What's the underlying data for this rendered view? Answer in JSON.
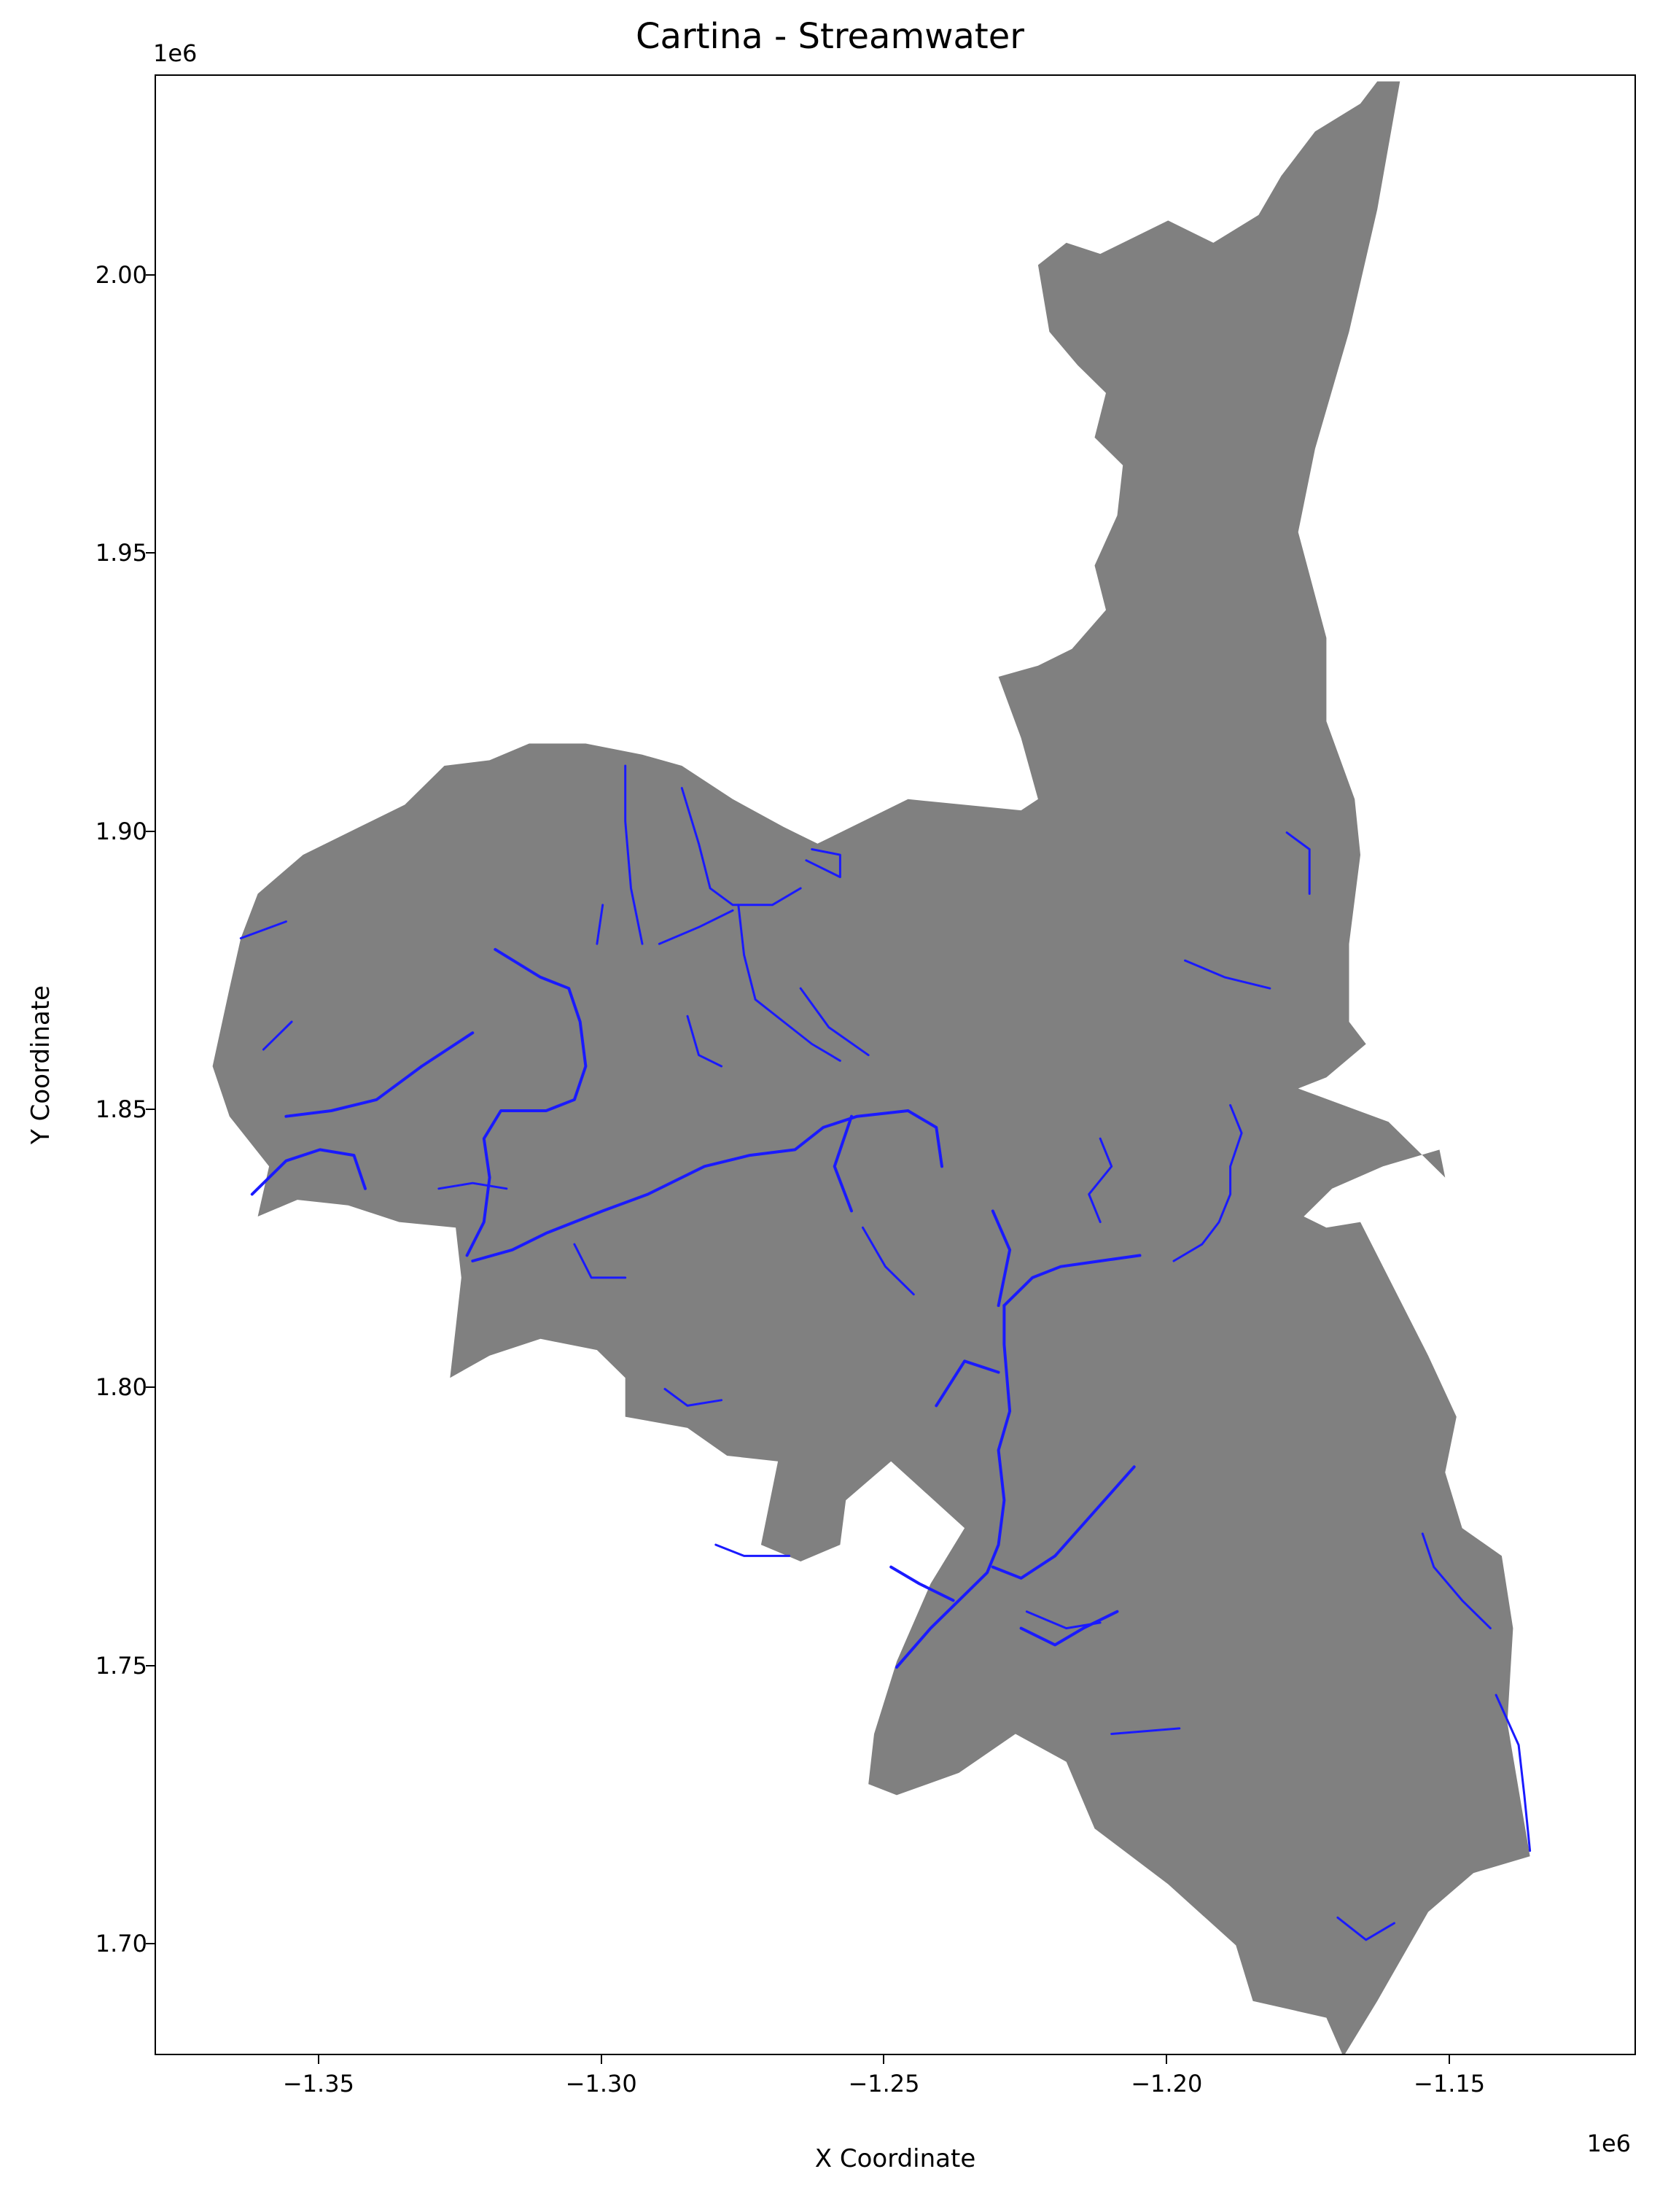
{
  "title": "Cartina - Streamwater",
  "axes": {
    "xlabel": "X Coordinate",
    "ylabel": "Y Coordinate",
    "x_offset": "1e6",
    "y_offset": "1e6",
    "xticks": [
      "−1.35",
      "−1.30",
      "−1.25",
      "−1.20",
      "−1.15"
    ],
    "xtick_values": [
      -1.35,
      -1.3,
      -1.25,
      -1.2,
      -1.15
    ],
    "yticks": [
      "2.00",
      "1.95",
      "1.90",
      "1.85",
      "1.80",
      "1.75",
      "1.70"
    ],
    "ytick_values": [
      2.0,
      1.95,
      1.9,
      1.85,
      1.8,
      1.75,
      1.7
    ],
    "xlim": [
      -1.379,
      -1.117
    ],
    "ylim": [
      1.68,
      2.036
    ]
  },
  "colors": {
    "land": "#808080",
    "streams": "#1a1aff",
    "background": "#ffffff"
  },
  "chart_data": {
    "type": "map",
    "title": "Cartina - Streamwater",
    "xlabel": "X Coordinate",
    "ylabel": "Y Coordinate",
    "units_multiplier": "1e6",
    "region_outline": [
      [
        -1.159,
        2.035
      ],
      [
        -1.163,
        2.035
      ],
      [
        -1.166,
        2.031
      ],
      [
        -1.174,
        2.026
      ],
      [
        -1.18,
        2.018
      ],
      [
        -1.184,
        2.011
      ],
      [
        -1.192,
        2.006
      ],
      [
        -1.2,
        2.01
      ],
      [
        -1.212,
        2.004
      ],
      [
        -1.218,
        2.006
      ],
      [
        -1.223,
        2.002
      ],
      [
        -1.221,
        1.99
      ],
      [
        -1.216,
        1.984
      ],
      [
        -1.211,
        1.979
      ],
      [
        -1.213,
        1.971
      ],
      [
        -1.208,
        1.966
      ],
      [
        -1.209,
        1.957
      ],
      [
        -1.213,
        1.948
      ],
      [
        -1.211,
        1.94
      ],
      [
        -1.217,
        1.933
      ],
      [
        -1.223,
        1.93
      ],
      [
        -1.23,
        1.928
      ],
      [
        -1.226,
        1.917
      ],
      [
        -1.223,
        1.906
      ],
      [
        -1.226,
        1.904
      ],
      [
        -1.246,
        1.906
      ],
      [
        -1.262,
        1.898
      ],
      [
        -1.268,
        1.901
      ],
      [
        -1.277,
        1.906
      ],
      [
        -1.286,
        1.912
      ],
      [
        -1.293,
        1.914
      ],
      [
        -1.303,
        1.916
      ],
      [
        -1.313,
        1.916
      ],
      [
        -1.32,
        1.913
      ],
      [
        -1.328,
        1.912
      ],
      [
        -1.335,
        1.905
      ],
      [
        -1.343,
        1.901
      ],
      [
        -1.353,
        1.896
      ],
      [
        -1.361,
        1.889
      ],
      [
        -1.364,
        1.881
      ],
      [
        -1.366,
        1.872
      ],
      [
        -1.369,
        1.858
      ],
      [
        -1.366,
        1.849
      ],
      [
        -1.359,
        1.84
      ],
      [
        -1.361,
        1.831
      ],
      [
        -1.354,
        1.834
      ],
      [
        -1.345,
        1.833
      ],
      [
        -1.336,
        1.83
      ],
      [
        -1.326,
        1.829
      ],
      [
        -1.325,
        1.82
      ],
      [
        -1.326,
        1.811
      ],
      [
        -1.327,
        1.802
      ],
      [
        -1.32,
        1.806
      ],
      [
        -1.311,
        1.809
      ],
      [
        -1.301,
        1.807
      ],
      [
        -1.296,
        1.802
      ],
      [
        -1.296,
        1.795
      ],
      [
        -1.285,
        1.793
      ],
      [
        -1.278,
        1.788
      ],
      [
        -1.269,
        1.787
      ],
      [
        -1.272,
        1.772
      ],
      [
        -1.265,
        1.769
      ],
      [
        -1.258,
        1.772
      ],
      [
        -1.257,
        1.78
      ],
      [
        -1.249,
        1.787
      ],
      [
        -1.236,
        1.775
      ],
      [
        -1.242,
        1.765
      ],
      [
        -1.248,
        1.751
      ],
      [
        -1.252,
        1.738
      ],
      [
        -1.253,
        1.729
      ],
      [
        -1.248,
        1.727
      ],
      [
        -1.237,
        1.731
      ],
      [
        -1.227,
        1.738
      ],
      [
        -1.218,
        1.733
      ],
      [
        -1.213,
        1.721
      ],
      [
        -1.2,
        1.711
      ],
      [
        -1.188,
        1.7
      ],
      [
        -1.185,
        1.69
      ],
      [
        -1.172,
        1.687
      ],
      [
        -1.169,
        1.68
      ],
      [
        -1.163,
        1.69
      ],
      [
        -1.154,
        1.706
      ],
      [
        -1.146,
        1.713
      ],
      [
        -1.136,
        1.716
      ],
      [
        -1.14,
        1.74
      ],
      [
        -1.139,
        1.757
      ],
      [
        -1.141,
        1.77
      ],
      [
        -1.148,
        1.775
      ],
      [
        -1.151,
        1.785
      ],
      [
        -1.149,
        1.795
      ],
      [
        -1.154,
        1.806
      ],
      [
        -1.161,
        1.82
      ],
      [
        -1.166,
        1.83
      ],
      [
        -1.172,
        1.829
      ],
      [
        -1.176,
        1.831
      ],
      [
        -1.171,
        1.836
      ],
      [
        -1.162,
        1.84
      ],
      [
        -1.152,
        1.843
      ],
      [
        -1.151,
        1.838
      ],
      [
        -1.161,
        1.848
      ],
      [
        -1.177,
        1.854
      ],
      [
        -1.172,
        1.856
      ],
      [
        -1.165,
        1.862
      ],
      [
        -1.168,
        1.866
      ],
      [
        -1.168,
        1.88
      ],
      [
        -1.166,
        1.896
      ],
      [
        -1.167,
        1.906
      ],
      [
        -1.172,
        1.92
      ],
      [
        -1.172,
        1.935
      ],
      [
        -1.177,
        1.954
      ],
      [
        -1.174,
        1.969
      ],
      [
        -1.168,
        1.99
      ],
      [
        -1.163,
        2.012
      ],
      [
        -1.159,
        2.035
      ]
    ],
    "streams": [
      [
        [
          -1.319,
          1.879
        ],
        [
          -1.311,
          1.874
        ],
        [
          -1.306,
          1.872
        ],
        [
          -1.304,
          1.866
        ],
        [
          -1.303,
          1.858
        ],
        [
          -1.305,
          1.852
        ],
        [
          -1.31,
          1.85
        ],
        [
          -1.318,
          1.85
        ],
        [
          -1.321,
          1.845
        ],
        [
          -1.32,
          1.838
        ],
        [
          -1.321,
          1.83
        ],
        [
          -1.324,
          1.824
        ]
      ],
      [
        [
          -1.323,
          1.823
        ],
        [
          -1.316,
          1.825
        ],
        [
          -1.31,
          1.828
        ],
        [
          -1.3,
          1.832
        ],
        [
          -1.292,
          1.835
        ],
        [
          -1.282,
          1.84
        ],
        [
          -1.274,
          1.842
        ],
        [
          -1.266,
          1.843
        ],
        [
          -1.261,
          1.847
        ],
        [
          -1.255,
          1.849
        ],
        [
          -1.246,
          1.85
        ],
        [
          -1.241,
          1.847
        ],
        [
          -1.24,
          1.84
        ]
      ],
      [
        [
          -1.362,
          1.835
        ],
        [
          -1.356,
          1.841
        ],
        [
          -1.35,
          1.843
        ],
        [
          -1.344,
          1.842
        ],
        [
          -1.342,
          1.836
        ]
      ],
      [
        [
          -1.356,
          1.849
        ],
        [
          -1.348,
          1.85
        ],
        [
          -1.34,
          1.852
        ],
        [
          -1.332,
          1.858
        ],
        [
          -1.323,
          1.864
        ]
      ],
      [
        [
          -1.256,
          1.849
        ],
        [
          -1.259,
          1.84
        ],
        [
          -1.256,
          1.832
        ]
      ],
      [
        [
          -1.23,
          1.815
        ],
        [
          -1.228,
          1.825
        ],
        [
          -1.231,
          1.832
        ]
      ],
      [
        [
          -1.229,
          1.815
        ],
        [
          -1.229,
          1.808
        ],
        [
          -1.228,
          1.796
        ],
        [
          -1.23,
          1.789
        ],
        [
          -1.229,
          1.78
        ],
        [
          -1.23,
          1.772
        ],
        [
          -1.232,
          1.767
        ],
        [
          -1.236,
          1.763
        ],
        [
          -1.242,
          1.757
        ],
        [
          -1.248,
          1.75
        ]
      ],
      [
        [
          -1.229,
          1.815
        ],
        [
          -1.224,
          1.82
        ],
        [
          -1.219,
          1.822
        ],
        [
          -1.212,
          1.823
        ],
        [
          -1.205,
          1.824
        ]
      ],
      [
        [
          -1.231,
          1.768
        ],
        [
          -1.226,
          1.766
        ],
        [
          -1.22,
          1.77
        ],
        [
          -1.213,
          1.778
        ],
        [
          -1.206,
          1.786
        ]
      ],
      [
        [
          -1.23,
          1.803
        ],
        [
          -1.236,
          1.805
        ],
        [
          -1.241,
          1.797
        ]
      ],
      [
        [
          -1.226,
          1.757
        ],
        [
          -1.22,
          1.754
        ],
        [
          -1.215,
          1.757
        ],
        [
          -1.209,
          1.76
        ]
      ],
      [
        [
          -1.238,
          1.762
        ],
        [
          -1.244,
          1.765
        ],
        [
          -1.249,
          1.768
        ]
      ],
      [
        [
          -1.189,
          1.851
        ],
        [
          -1.187,
          1.846
        ],
        [
          -1.189,
          1.84
        ],
        [
          -1.189,
          1.835
        ],
        [
          -1.191,
          1.83
        ],
        [
          -1.194,
          1.826
        ],
        [
          -1.199,
          1.823
        ]
      ],
      [
        [
          -1.155,
          1.774
        ],
        [
          -1.153,
          1.768
        ],
        [
          -1.148,
          1.762
        ],
        [
          -1.143,
          1.757
        ]
      ],
      [
        [
          -1.142,
          1.745
        ],
        [
          -1.138,
          1.736
        ],
        [
          -1.137,
          1.727
        ],
        [
          -1.136,
          1.717
        ]
      ],
      [
        [
          -1.21,
          1.738
        ],
        [
          -1.198,
          1.739
        ]
      ],
      [
        [
          -1.17,
          1.705
        ],
        [
          -1.165,
          1.701
        ],
        [
          -1.16,
          1.704
        ]
      ],
      [
        [
          -1.296,
          1.912
        ],
        [
          -1.296,
          1.902
        ],
        [
          -1.295,
          1.89
        ],
        [
          -1.293,
          1.88
        ]
      ],
      [
        [
          -1.286,
          1.908
        ],
        [
          -1.283,
          1.898
        ],
        [
          -1.281,
          1.89
        ],
        [
          -1.277,
          1.887
        ],
        [
          -1.27,
          1.887
        ],
        [
          -1.265,
          1.89
        ]
      ],
      [
        [
          -1.276,
          1.887
        ],
        [
          -1.275,
          1.878
        ],
        [
          -1.273,
          1.87
        ],
        [
          -1.268,
          1.866
        ],
        [
          -1.263,
          1.862
        ],
        [
          -1.258,
          1.859
        ]
      ],
      [
        [
          -1.29,
          1.88
        ],
        [
          -1.283,
          1.883
        ],
        [
          -1.277,
          1.886
        ]
      ],
      [
        [
          -1.3,
          1.887
        ],
        [
          -1.301,
          1.88
        ]
      ],
      [
        [
          -1.364,
          1.881
        ],
        [
          -1.356,
          1.884
        ]
      ],
      [
        [
          -1.355,
          1.866
        ],
        [
          -1.36,
          1.861
        ]
      ],
      [
        [
          -1.329,
          1.836
        ],
        [
          -1.323,
          1.837
        ],
        [
          -1.317,
          1.836
        ]
      ],
      [
        [
          -1.285,
          1.867
        ],
        [
          -1.283,
          1.86
        ],
        [
          -1.279,
          1.858
        ]
      ],
      [
        [
          -1.265,
          1.872
        ],
        [
          -1.26,
          1.865
        ],
        [
          -1.253,
          1.86
        ]
      ],
      [
        [
          -1.264,
          1.895
        ],
        [
          -1.258,
          1.892
        ],
        [
          -1.258,
          1.896
        ],
        [
          -1.263,
          1.897
        ]
      ],
      [
        [
          -1.305,
          1.826
        ],
        [
          -1.302,
          1.82
        ],
        [
          -1.296,
          1.82
        ]
      ],
      [
        [
          -1.289,
          1.8
        ],
        [
          -1.285,
          1.797
        ],
        [
          -1.279,
          1.798
        ]
      ],
      [
        [
          -1.28,
          1.772
        ],
        [
          -1.275,
          1.77
        ],
        [
          -1.267,
          1.77
        ]
      ],
      [
        [
          -1.254,
          1.829
        ],
        [
          -1.25,
          1.822
        ],
        [
          -1.245,
          1.817
        ]
      ],
      [
        [
          -1.212,
          1.845
        ],
        [
          -1.21,
          1.84
        ],
        [
          -1.214,
          1.835
        ],
        [
          -1.212,
          1.83
        ]
      ],
      [
        [
          -1.197,
          1.877
        ],
        [
          -1.19,
          1.874
        ],
        [
          -1.182,
          1.872
        ]
      ],
      [
        [
          -1.179,
          1.9
        ],
        [
          -1.175,
          1.897
        ],
        [
          -1.175,
          1.889
        ]
      ],
      [
        [
          -1.225,
          1.76
        ],
        [
          -1.218,
          1.757
        ],
        [
          -1.212,
          1.758
        ]
      ]
    ]
  }
}
